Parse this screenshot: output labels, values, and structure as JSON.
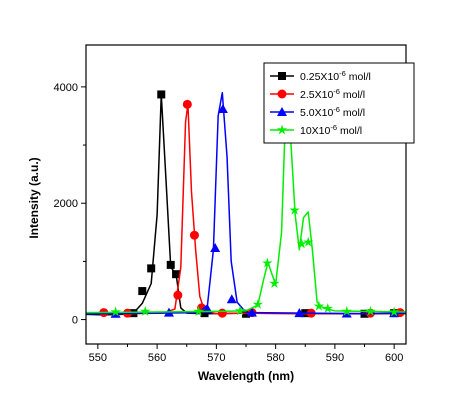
{
  "chart_data": {
    "type": "line",
    "title": "",
    "xlabel": "Wavelength (nm)",
    "ylabel": "Intensity (a.u.)",
    "xlim": [
      548,
      602
    ],
    "ylim": [
      -420,
      4720
    ],
    "xticks": [
      550,
      560,
      570,
      580,
      590,
      600
    ],
    "yticks": [
      0,
      2000,
      4000
    ],
    "grid": false,
    "legend_position": "top-right",
    "series": [
      {
        "name_prefix": "0.25X10",
        "name_exp": "-6",
        "name_unit": "mol/l",
        "color": "#000000",
        "marker": "square",
        "x": [
          548,
          551,
          554,
          556,
          557.5,
          559,
          560,
          560.7,
          561.5,
          562.3,
          563.2,
          564,
          565,
          568,
          575,
          585,
          595,
          602
        ],
        "y": [
          90,
          80,
          90,
          110,
          280,
          620,
          1800,
          3870,
          2400,
          900,
          780,
          200,
          110,
          100,
          110,
          105,
          100,
          110
        ],
        "marker_x": [
          556,
          557.5,
          559,
          560.7,
          562.3,
          563.2,
          568,
          575,
          585,
          595,
          600
        ],
        "marker_y": [
          110,
          490,
          880,
          3870,
          940,
          780,
          110,
          100,
          110,
          100,
          110
        ]
      },
      {
        "name_prefix": "2.5X10",
        "name_exp": "-6",
        "name_unit": "mol/l",
        "color": "#ff0000",
        "marker": "circle",
        "x": [
          548,
          555,
          561,
          563,
          564,
          564.8,
          565.2,
          565.8,
          566.5,
          567.2,
          568,
          570,
          575,
          585,
          595,
          602
        ],
        "y": [
          110,
          100,
          110,
          180,
          900,
          3400,
          3700,
          2200,
          1200,
          400,
          150,
          100,
          110,
          100,
          105,
          100
        ],
        "marker_x": [
          551,
          555,
          563.5,
          565.1,
          566.3,
          567.5,
          571,
          576,
          586,
          596,
          601
        ],
        "marker_y": [
          120,
          110,
          420,
          3700,
          1450,
          200,
          110,
          120,
          110,
          110,
          120
        ]
      },
      {
        "name_prefix": "5.0X10",
        "name_exp": "-6",
        "name_unit": "mol/l",
        "color": "#0000ff",
        "marker": "triangle",
        "x": [
          548,
          560,
          567,
          568.5,
          569.5,
          570.3,
          571,
          571.8,
          572.5,
          573.5,
          575,
          585,
          595,
          602
        ],
        "y": [
          100,
          110,
          120,
          250,
          1200,
          3500,
          3900,
          2800,
          1000,
          300,
          120,
          110,
          100,
          110
        ],
        "marker_x": [
          553,
          562,
          568.5,
          569.8,
          571.1,
          572.6,
          576,
          584,
          592,
          600
        ],
        "marker_y": [
          100,
          120,
          180,
          1230,
          3620,
          350,
          120,
          110,
          105,
          110
        ]
      },
      {
        "name_prefix": "10X10",
        "name_exp": "-6",
        "name_unit": "mol/l",
        "color": "#00ee00",
        "marker": "star",
        "x": [
          548,
          560,
          570,
          575,
          577,
          578,
          578.7,
          580,
          581,
          581.8,
          582.6,
          583.3,
          584,
          584.7,
          585.5,
          586.2,
          587,
          588,
          590,
          595,
          602
        ],
        "y": [
          120,
          130,
          140,
          150,
          250,
          700,
          980,
          600,
          1500,
          3920,
          3000,
          1800,
          1200,
          1750,
          1850,
          1200,
          300,
          200,
          150,
          140,
          130
        ],
        "marker_x": [
          553,
          558,
          567,
          574,
          577,
          578.6,
          579.8,
          582.2,
          583.2,
          584.4,
          585.5,
          587.3,
          588.8,
          592,
          596,
          600
        ],
        "marker_y": [
          130,
          140,
          140,
          150,
          260,
          970,
          620,
          3680,
          1880,
          1300,
          1330,
          230,
          190,
          140,
          140,
          130
        ]
      }
    ]
  }
}
